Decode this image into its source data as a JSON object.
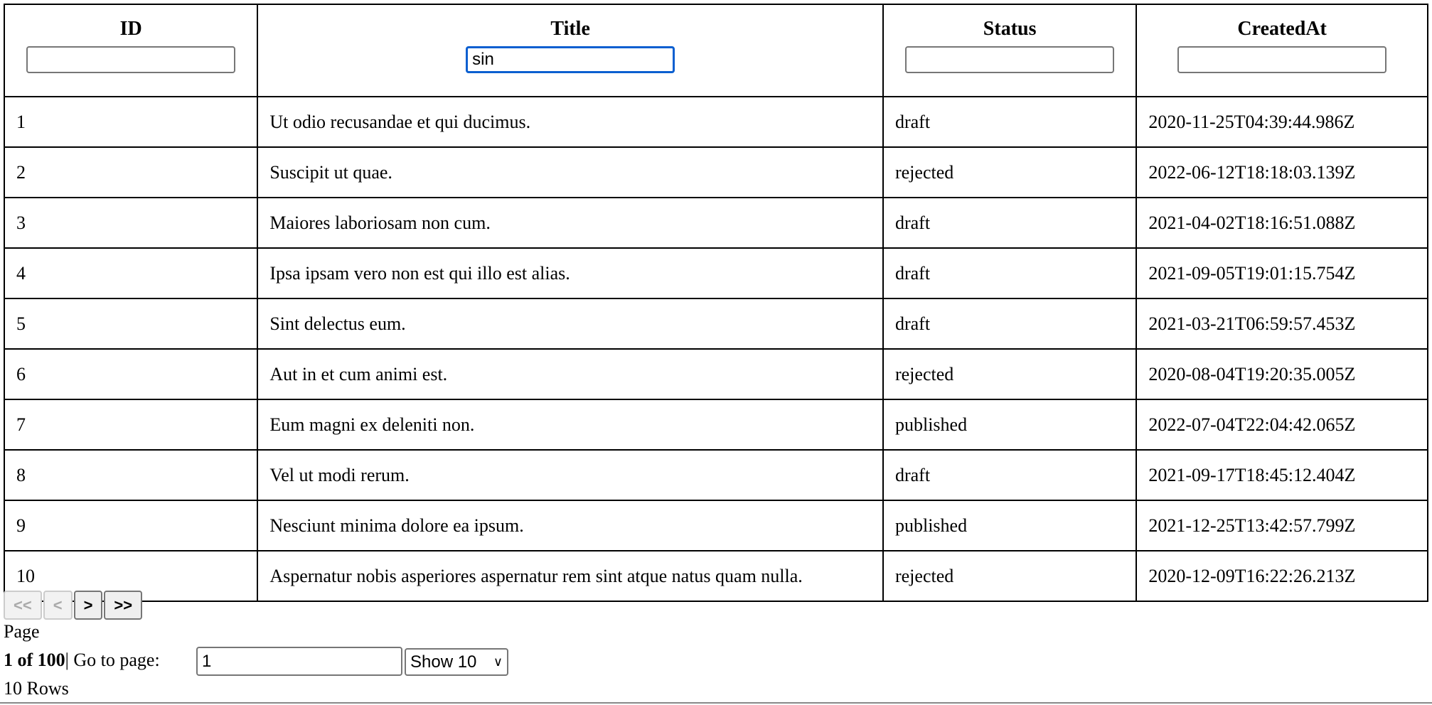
{
  "columns": [
    {
      "label": "ID",
      "filter": ""
    },
    {
      "label": "Title",
      "filter": "sin"
    },
    {
      "label": "Status",
      "filter": ""
    },
    {
      "label": "CreatedAt",
      "filter": ""
    }
  ],
  "rows": [
    [
      "1",
      "Ut odio recusandae et qui ducimus.",
      "draft",
      "2020-11-25T04:39:44.986Z"
    ],
    [
      "2",
      "Suscipit ut quae.",
      "rejected",
      "2022-06-12T18:18:03.139Z"
    ],
    [
      "3",
      "Maiores laboriosam non cum.",
      "draft",
      "2021-04-02T18:16:51.088Z"
    ],
    [
      "4",
      "Ipsa ipsam vero non est qui illo est alias.",
      "draft",
      "2021-09-05T19:01:15.754Z"
    ],
    [
      "5",
      "Sint delectus eum.",
      "draft",
      "2021-03-21T06:59:57.453Z"
    ],
    [
      "6",
      "Aut in et cum animi est.",
      "rejected",
      "2020-08-04T19:20:35.005Z"
    ],
    [
      "7",
      "Eum magni ex deleniti non.",
      "published",
      "2022-07-04T22:04:42.065Z"
    ],
    [
      "8",
      "Vel ut modi rerum.",
      "draft",
      "2021-09-17T18:45:12.404Z"
    ],
    [
      "9",
      "Nesciunt minima dolore ea ipsum.",
      "published",
      "2021-12-25T13:42:57.799Z"
    ],
    [
      "10",
      "Aspernatur nobis asperiores aspernatur rem sint atque natus quam nulla.",
      "rejected",
      "2020-12-09T16:22:26.213Z"
    ]
  ],
  "pagination": {
    "first": "<<",
    "prev": "<",
    "next": ">",
    "last": ">>",
    "page_label": "Page",
    "page_info": "1 of 100",
    "separator": "|",
    "goto_label": " Go to page:",
    "goto_value": "1",
    "page_size": "Show 10",
    "rows_label": "10 Rows"
  }
}
